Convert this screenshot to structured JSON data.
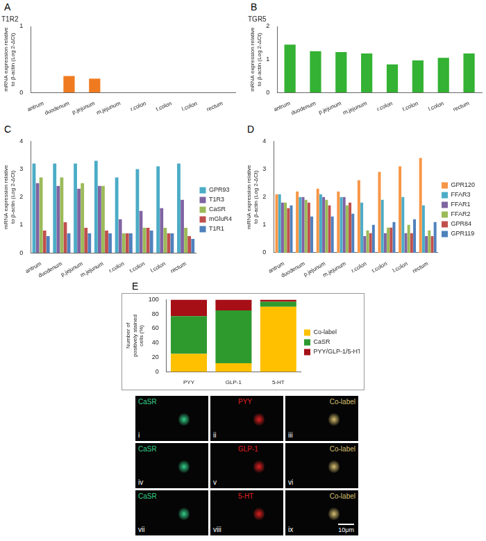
{
  "chart_data": [
    {
      "panel_label": "A",
      "type": "bar",
      "title": "T1R2",
      "y_label": [
        "mRNA expression relative",
        "to β-actin (Log 2-ΔCt)"
      ],
      "categories": [
        "antrum",
        "duodenum",
        "p.jejunum",
        "m.jejunum",
        "r.colon",
        "t.colon",
        "l.colon",
        "rectum"
      ],
      "values": [
        0,
        0.25,
        0.21,
        0,
        0,
        0,
        0,
        0
      ],
      "color": "#f07a1f",
      "ylim": [
        0,
        1
      ],
      "yticks": [
        0,
        1
      ],
      "grid": false
    },
    {
      "panel_label": "B",
      "type": "bar",
      "title": "TGR5",
      "y_label": [
        "mRNA expression relative",
        "to β-actin (Log 2-ΔCt)"
      ],
      "categories": [
        "antrum",
        "duodenum",
        "p.jejunum",
        "m.jejunum",
        "r.colon",
        "t.colon",
        "l.colon",
        "rectum"
      ],
      "values": [
        1.45,
        1.25,
        1.22,
        1.18,
        0.85,
        0.97,
        1.05,
        1.18
      ],
      "color": "#33b233",
      "ylim": [
        0,
        2
      ],
      "yticks": [
        0,
        1,
        2
      ],
      "grid": false
    },
    {
      "panel_label": "C",
      "type": "bar",
      "y_label": [
        "mRNA expression relative",
        "to β-actin (Log 2-ΔCt)"
      ],
      "categories": [
        "antrum",
        "duodenum",
        "p.jejunum",
        "m.jejunum",
        "r.colon",
        "t.colon",
        "l.colon",
        "rectum"
      ],
      "series": [
        {
          "name": "GPR93",
          "color": "#4bacc6",
          "values": [
            3.2,
            3.2,
            3.2,
            3.3,
            2.7,
            3.0,
            3.1,
            3.2
          ]
        },
        {
          "name": "T1R3",
          "color": "#8064a2",
          "values": [
            2.5,
            2.4,
            2.3,
            2.4,
            1.2,
            1.5,
            1.6,
            1.9
          ]
        },
        {
          "name": "CaSR",
          "color": "#9bbb59",
          "values": [
            2.7,
            2.7,
            2.5,
            2.4,
            0.7,
            0.9,
            0.9,
            0.9
          ]
        },
        {
          "name": "mGluR4",
          "color": "#c0504d",
          "values": [
            0.8,
            1.1,
            0.9,
            0.8,
            0.7,
            0.9,
            0.7,
            0.6
          ]
        },
        {
          "name": "T1R1",
          "color": "#4f81bd",
          "values": [
            0.6,
            0.7,
            0.7,
            0.7,
            0.7,
            0.8,
            0.7,
            0.5
          ]
        }
      ],
      "ylim": [
        0,
        4
      ],
      "yticks": [
        0,
        1,
        2,
        3,
        4
      ],
      "grid": false,
      "legend": "right"
    },
    {
      "panel_label": "D",
      "type": "bar",
      "y_label": [
        "mRNA expression relative",
        "to β-actin (Log 2-ΔCt)"
      ],
      "categories": [
        "antrum",
        "duodenum",
        "p.jejunum",
        "m.jejunum",
        "r.colon",
        "t.colon",
        "l.colon",
        "rectum"
      ],
      "series": [
        {
          "name": "GPR120",
          "color": "#f79646",
          "values": [
            2.1,
            2.2,
            2.3,
            2.2,
            2.6,
            2.9,
            3.1,
            3.4
          ]
        },
        {
          "name": "FFAR3",
          "color": "#4bacc6",
          "values": [
            2.1,
            2.0,
            2.1,
            2.0,
            1.8,
            1.9,
            2.0,
            1.7
          ]
        },
        {
          "name": "FFAR1",
          "color": "#8064a2",
          "values": [
            1.8,
            2.0,
            2.0,
            2.0,
            0.6,
            0.7,
            0.7,
            0.6
          ]
        },
        {
          "name": "FFAR2",
          "color": "#9bbb59",
          "values": [
            1.8,
            1.9,
            1.9,
            1.7,
            0.8,
            0.9,
            1.0,
            0.8
          ]
        },
        {
          "name": "GPR84",
          "color": "#c0504d",
          "values": [
            1.6,
            1.8,
            1.7,
            1.8,
            0.7,
            0.9,
            0.7,
            0.6
          ]
        },
        {
          "name": "GPR119",
          "color": "#4f81bd",
          "values": [
            1.7,
            1.3,
            1.3,
            1.4,
            1.0,
            1.1,
            1.2,
            1.1
          ]
        }
      ],
      "ylim": [
        0,
        4
      ],
      "yticks": [
        0,
        1,
        2,
        3,
        4
      ],
      "grid": false,
      "legend": "right"
    },
    {
      "panel_label": "E",
      "type": "bar",
      "stacked": true,
      "y_label": [
        "Number of",
        "positively stained",
        "cells (%)"
      ],
      "categories": [
        "PYY",
        "GLP-1",
        "5-HT"
      ],
      "series": [
        {
          "name": "Co-label",
          "color": "#ffc000",
          "values": [
            25,
            12,
            90
          ]
        },
        {
          "name": "CaSR",
          "color": "#2e9a2e",
          "values": [
            52,
            73,
            7
          ]
        },
        {
          "name": "PYY/GLP-1/5-HT",
          "color": "#a50f15",
          "values": [
            23,
            15,
            3
          ]
        }
      ],
      "ylim": [
        0,
        100
      ],
      "yticks": [
        0,
        20,
        40,
        60,
        80,
        100
      ],
      "grid": false,
      "legend": "right"
    }
  ],
  "micrographs": {
    "rows": [
      [
        {
          "numeral": "i",
          "label": "CaSR",
          "color": "#35d08a"
        },
        {
          "numeral": "ii",
          "label": "PYY",
          "color": "#e02020"
        },
        {
          "numeral": "iii",
          "label": "Co-label",
          "color": "#d8c070"
        }
      ],
      [
        {
          "numeral": "iv",
          "label": "CaSR",
          "color": "#35d08a"
        },
        {
          "numeral": "v",
          "label": "GLP-1",
          "color": "#e02020"
        },
        {
          "numeral": "vi",
          "label": "Co-label",
          "color": "#d8c070"
        }
      ],
      [
        {
          "numeral": "vii",
          "label": "CaSR",
          "color": "#35d08a"
        },
        {
          "numeral": "viii",
          "label": "5-HT",
          "color": "#e02020"
        },
        {
          "numeral": "ix",
          "label": "Co-label",
          "color": "#d8c070"
        }
      ]
    ],
    "scale_bar": "10μm"
  }
}
